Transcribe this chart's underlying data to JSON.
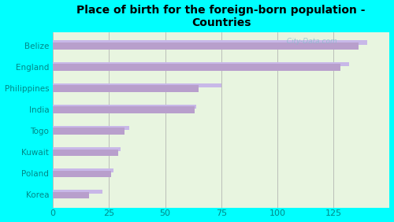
{
  "title": "Place of birth for the foreign-born population -\nCountries",
  "bar_pairs": [
    {
      "label": "Belize",
      "v1": 140,
      "v2": 136
    },
    {
      "label": "England",
      "v1": 132,
      "v2": 128
    },
    {
      "label": "Philippines",
      "v1": 75,
      "v2": 65
    },
    {
      "label": "India",
      "v1": 64,
      "v2": 63
    },
    {
      "label": "Togo",
      "v1": 34,
      "v2": 32
    },
    {
      "label": "Kuwait",
      "v1": 30,
      "v2": 29
    },
    {
      "label": "Poland",
      "v1": 27,
      "v2": 26
    },
    {
      "label": "Korea",
      "v1": 22,
      "v2": 16
    }
  ],
  "bar_color_light": "#c8b8e8",
  "bar_color_dark": "#b89fcc",
  "bg_color": "#00ffff",
  "plot_bg_top": "#e8f5e0",
  "plot_bg_bot": "#d8f0d0",
  "title_color": "#000000",
  "label_color": "#008888",
  "tick_color": "#008888",
  "grid_color": "#aaaaaa",
  "watermark": "  City-Data.com",
  "xlim": [
    0,
    150
  ],
  "xticks": [
    0,
    25,
    50,
    75,
    100,
    125
  ]
}
